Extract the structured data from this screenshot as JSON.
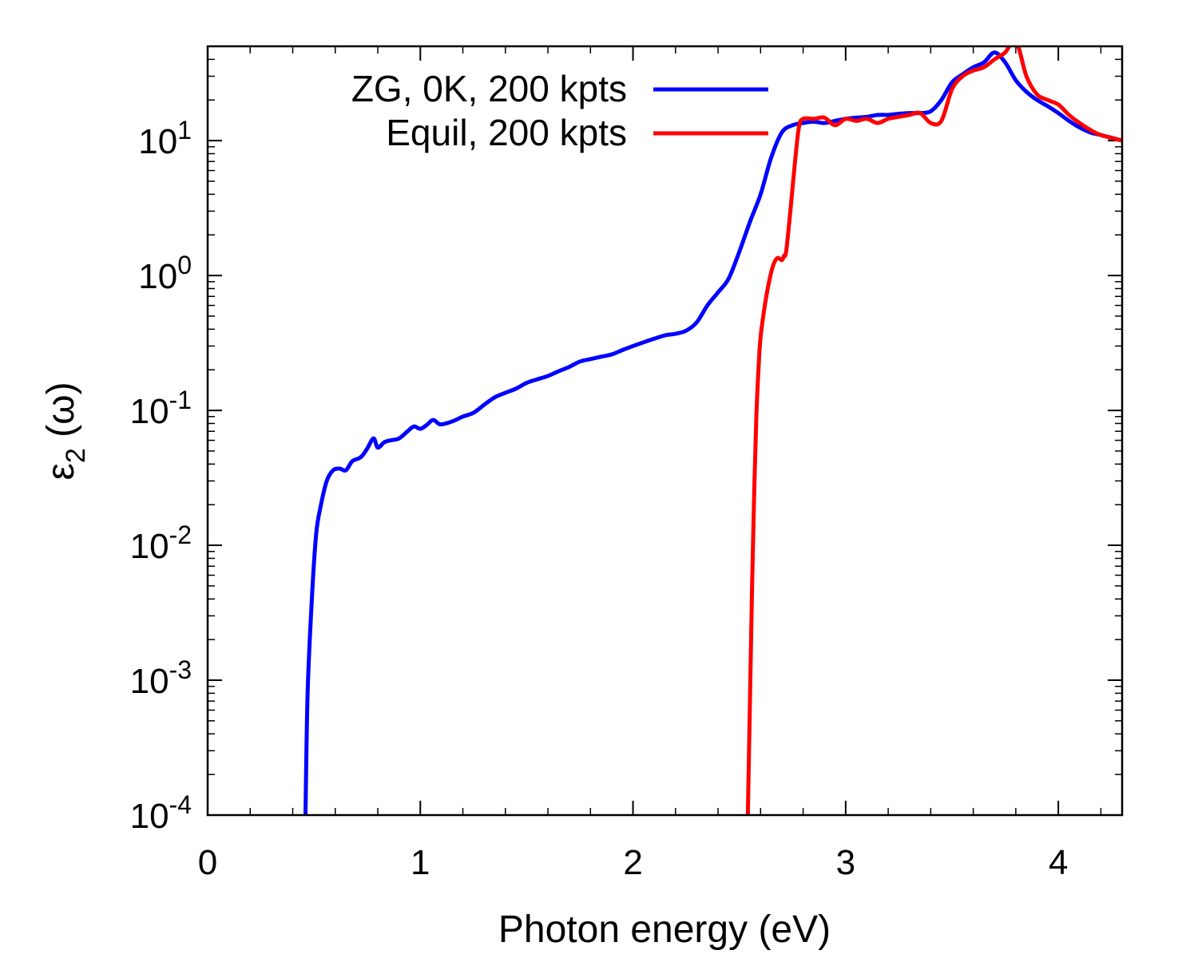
{
  "chart_data": {
    "type": "line",
    "xlabel": "Photon energy (eV)",
    "ylabel": {
      "symbol": "ε",
      "subscript": "2",
      "suffix": " (ω)"
    },
    "xlim": [
      0,
      4.3
    ],
    "ylim": [
      0.0001,
      50
    ],
    "yscale": "log",
    "legend_position": "top-right",
    "x_ticks": [
      {
        "value": 0,
        "label": "0"
      },
      {
        "value": 1,
        "label": "1"
      },
      {
        "value": 2,
        "label": "2"
      },
      {
        "value": 3,
        "label": "3"
      },
      {
        "value": 4,
        "label": "4"
      }
    ],
    "y_ticks": [
      {
        "value": 0.0001,
        "base": "10",
        "exp": "-4"
      },
      {
        "value": 0.001,
        "base": "10",
        "exp": "-3"
      },
      {
        "value": 0.01,
        "base": "10",
        "exp": "-2"
      },
      {
        "value": 0.1,
        "base": "10",
        "exp": "-1"
      },
      {
        "value": 1,
        "base": "10",
        "exp": "0"
      },
      {
        "value": 10,
        "base": "10",
        "exp": "1"
      }
    ],
    "series": [
      {
        "name": "ZG, 0K, 200 kpts",
        "color": "#0000ff",
        "x": [
          0.46,
          0.47,
          0.49,
          0.51,
          0.53,
          0.56,
          0.59,
          0.62,
          0.65,
          0.68,
          0.72,
          0.75,
          0.78,
          0.8,
          0.83,
          0.86,
          0.9,
          0.94,
          0.97,
          1.0,
          1.03,
          1.06,
          1.09,
          1.12,
          1.16,
          1.2,
          1.25,
          1.3,
          1.35,
          1.4,
          1.45,
          1.5,
          1.55,
          1.6,
          1.65,
          1.7,
          1.75,
          1.8,
          1.85,
          1.9,
          1.95,
          2.0,
          2.05,
          2.1,
          2.15,
          2.2,
          2.25,
          2.3,
          2.35,
          2.4,
          2.45,
          2.5,
          2.55,
          2.6,
          2.65,
          2.7,
          2.75,
          2.8,
          2.85,
          2.9,
          2.95,
          3.0,
          3.05,
          3.1,
          3.15,
          3.2,
          3.25,
          3.3,
          3.35,
          3.4,
          3.45,
          3.5,
          3.55,
          3.6,
          3.65,
          3.7,
          3.75,
          3.8,
          3.85,
          3.9,
          3.95,
          4.0,
          4.05,
          4.1,
          4.15,
          4.2,
          4.3
        ],
        "y": [
          0.0001,
          0.0008,
          0.004,
          0.012,
          0.019,
          0.03,
          0.036,
          0.037,
          0.036,
          0.042,
          0.045,
          0.052,
          0.062,
          0.053,
          0.058,
          0.06,
          0.062,
          0.07,
          0.076,
          0.073,
          0.078,
          0.085,
          0.079,
          0.08,
          0.084,
          0.09,
          0.096,
          0.11,
          0.125,
          0.135,
          0.145,
          0.16,
          0.17,
          0.18,
          0.195,
          0.21,
          0.23,
          0.24,
          0.25,
          0.26,
          0.28,
          0.3,
          0.32,
          0.34,
          0.36,
          0.37,
          0.39,
          0.45,
          0.6,
          0.75,
          0.95,
          1.5,
          2.5,
          4.0,
          7.5,
          11.5,
          13.0,
          13.5,
          13.8,
          13.5,
          14.0,
          14.5,
          14.8,
          15.0,
          15.5,
          15.5,
          15.8,
          16.0,
          16.0,
          16.5,
          20.0,
          27.0,
          31.0,
          35.0,
          38.0,
          45.0,
          38.0,
          28.0,
          23.0,
          20.0,
          18.0,
          16.0,
          14.0,
          12.5,
          11.5,
          11.0,
          10.0
        ]
      },
      {
        "name": "Equil, 200 kpts",
        "color": "#ff0000",
        "x": [
          2.54,
          2.55,
          2.56,
          2.57,
          2.58,
          2.59,
          2.6,
          2.62,
          2.64,
          2.66,
          2.68,
          2.7,
          2.71,
          2.72,
          2.74,
          2.76,
          2.78,
          2.8,
          2.85,
          2.9,
          2.95,
          3.0,
          3.05,
          3.1,
          3.15,
          3.2,
          3.25,
          3.3,
          3.35,
          3.4,
          3.45,
          3.5,
          3.55,
          3.6,
          3.65,
          3.7,
          3.75,
          3.8,
          3.85,
          3.9,
          3.95,
          4.0,
          4.05,
          4.1,
          4.15,
          4.2,
          4.3
        ],
        "y": [
          0.0001,
          0.0007,
          0.005,
          0.025,
          0.09,
          0.2,
          0.35,
          0.6,
          0.9,
          1.2,
          1.35,
          1.3,
          1.4,
          1.5,
          3.0,
          6.5,
          12.5,
          14.5,
          14.5,
          14.8,
          13.0,
          14.5,
          14.0,
          14.5,
          13.5,
          14.5,
          15.0,
          15.5,
          16.0,
          13.5,
          14.0,
          24.0,
          30.0,
          33.0,
          35.0,
          40.0,
          45.0,
          55.0,
          30.0,
          22.0,
          20.0,
          18.5,
          15.5,
          13.5,
          12.0,
          11.0,
          10.0
        ]
      }
    ]
  }
}
